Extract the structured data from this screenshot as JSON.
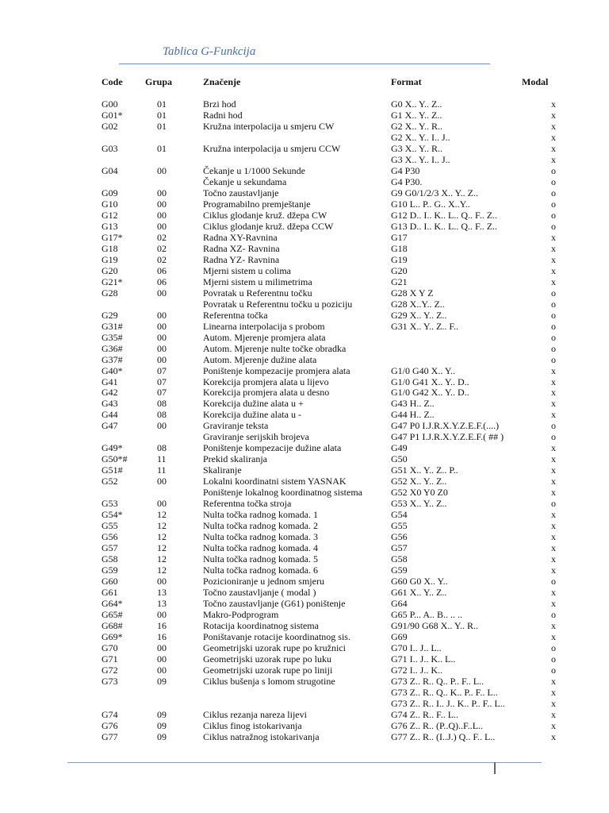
{
  "title": "Tablica G-Funkcija",
  "headers": {
    "code": "Code",
    "grupa": "Grupa",
    "znacenje": "Značenje",
    "format": "Format",
    "modal": "Modal"
  },
  "rows": [
    [
      "G00",
      "01",
      "Brzi hod",
      "G0 X.. Y.. Z..",
      "x"
    ],
    [
      "G01*",
      "01",
      "Radni hod",
      "G1 X.. Y.. Z..",
      "x"
    ],
    [
      "G02",
      "01",
      "Kružna interpolacija u smjeru CW",
      "G2 X.. Y.. R..",
      "x"
    ],
    [
      "",
      "",
      "",
      "G2 X.. Y.. I.. J..",
      "x"
    ],
    [
      "G03",
      "01",
      "Kružna interpolacija u smjeru CCW",
      "G3 X.. Y.. R..",
      "x"
    ],
    [
      "",
      "",
      "",
      "G3 X.. Y.. I.. J..",
      "x"
    ],
    [
      "G04",
      "00",
      "Čekanje u    1/1000 Sekunde",
      "G4 P30",
      "o"
    ],
    [
      "",
      "",
      "Čekanje u sekundama",
      "G4 P30.",
      "o"
    ],
    [
      "G09",
      "00",
      "Točno zaustavljanje",
      "G9 G0/1/2/3  X.. Y.. Z..",
      "o"
    ],
    [
      "G10",
      "00",
      "Programabilno premještanje",
      "G10 L.. P.. G.. X..Y..",
      "o"
    ],
    [
      "G12",
      "00",
      "Ciklus glodanje kruž. džepa CW",
      "G12 D.. I.. K.. L.. Q.. F.. Z..",
      "o"
    ],
    [
      "G13",
      "00",
      "Ciklus glodanje kruž. džepa CCW",
      "G13 D.. I.. K.. L.. Q.. F.. Z..",
      "o"
    ],
    [
      "G17*",
      "02",
      "Radna XY-Ravnina",
      "G17",
      "x"
    ],
    [
      "G18",
      "02",
      "Radna XZ- Ravnina",
      "G18",
      "x"
    ],
    [
      "G19",
      "02",
      "Radna YZ- Ravnina",
      "G19",
      "x"
    ],
    [
      "G20",
      "06",
      "Mjerni sistem u colima",
      "G20",
      "x"
    ],
    [
      "G21*",
      "06",
      "Mjerni sistem u milimetrima",
      "G21",
      "x"
    ],
    [
      "G28",
      "00",
      "Povratak u Referentnu točku",
      "G28 X Y Z",
      "o"
    ],
    [
      "",
      "",
      "Povratak u Referentnu točku u poziciju",
      "G28 X..Y.. Z..",
      "o"
    ],
    [
      "G29",
      "00",
      "Referentna točka",
      "G29 X.. Y.. Z..",
      "o"
    ],
    [
      "G31#",
      "00",
      "Linearna interpolacija s probom",
      "G31 X.. Y.. Z.. F..",
      "o"
    ],
    [
      "G35#",
      "00",
      "Autom. Mjerenje promjera alata",
      "",
      "o"
    ],
    [
      "G36#",
      "00",
      "Autom. Mjerenje nulte točke     obradka",
      "",
      "o"
    ],
    [
      "G37#",
      "00",
      "Autom. Mjerenje dužine alata",
      "",
      "o"
    ],
    [
      "G40*",
      "07",
      "Poništenje kompezacije promjera alata",
      "G1/0 G40 X.. Y..",
      "x"
    ],
    [
      "G41",
      "07",
      "Korekcija promjera alata u lijevo",
      "G1/0 G41 X.. Y.. D..",
      "x"
    ],
    [
      "G42",
      "07",
      "Korekcija promjera alata u desno",
      "G1/0 G42 X.. Y.. D..",
      "x"
    ],
    [
      "G43",
      "08",
      "Korekcija dužine alata u +",
      "G43 H.. Z..",
      "x"
    ],
    [
      "G44",
      "08",
      "Korekcija dužine alata u  -",
      "G44 H.. Z..",
      "x"
    ],
    [
      "G47",
      "00",
      "Graviranje teksta",
      "G47 P0 I.J.R.X.Y.Z.E.F.(....)",
      "o"
    ],
    [
      "",
      "",
      "Graviranje serijskih brojeva",
      "G47 P1 I.J.R.X.Y.Z.E.F.( ## )",
      "o"
    ],
    [
      "G49*",
      "08",
      "Poništenje kompezacije dužine alata",
      "G49",
      "x"
    ],
    [
      "G50*#",
      "11",
      "Prekid skaliranja",
      "G50",
      "x"
    ],
    [
      "G51#",
      "11",
      "Skaliranje",
      "G51 X.. Y.. Z.. P..",
      "x"
    ],
    [
      "G52",
      "00",
      "Lokalni koordinatni sistem YASNAK",
      "G52 X.. Y.. Z..",
      "x"
    ],
    [
      "",
      "",
      "Poništenje lokalnog koordinatnog sistema",
      "G52 X0 Y0 Z0",
      "x"
    ],
    [
      "G53",
      "00",
      "Referentna točka stroja",
      "G53 X.. Y.. Z..",
      "o"
    ],
    [
      "G54*",
      "12",
      "Nulta točka radnog komada. 1",
      "G54",
      "x"
    ],
    [
      "G55",
      "12",
      "Nulta točka radnog komada. 2",
      "G55",
      "x"
    ],
    [
      "G56",
      "12",
      "Nulta točka radnog komada. 3",
      "G56",
      "x"
    ],
    [
      "G57",
      "12",
      "Nulta točka radnog komada. 4",
      "G57",
      "x"
    ],
    [
      "G58",
      "12",
      "Nulta točka radnog komada. 5",
      "G58",
      "x"
    ],
    [
      "G59",
      "12",
      "Nulta točka radnog komada. 6",
      "G59",
      "x"
    ],
    [
      "G60",
      "00",
      "Pozicioniranje u jednom smjeru",
      "G60 G0 X.. Y..",
      "o"
    ],
    [
      "G61",
      "13",
      "Točno zaustavljanje ( modal )",
      "G61 X.. Y.. Z..",
      "x"
    ],
    [
      "G64*",
      "13",
      "Točno zaustavljanje (G61) poništenje",
      "G64",
      "x"
    ],
    [
      "G65#",
      "00",
      "Makro-Podprogram",
      "G65 P... A.. B.. .. ..",
      "o"
    ],
    [
      "G68#",
      "16",
      "Rotacija koordinatnog sistema",
      "G91/90 G68 X.. Y.. R..",
      "x"
    ],
    [
      "G69*",
      "16",
      "Poništavanje rotacije koordinatnog sis.",
      "G69",
      "x"
    ],
    [
      "G70",
      "00",
      "Geometrijski uzorak rupe po kružnici",
      "G70 I.. J.. L..",
      "o"
    ],
    [
      "G71",
      "00",
      "Geometrijski uzorak rupe po luku",
      "G71 I.. J.. K.. L..",
      "o"
    ],
    [
      "G72",
      "00",
      "Geometrijski uzorak rupe po liniji",
      "G72 I.. J.. K..",
      "o"
    ],
    [
      "G73",
      "09",
      "Ciklus bušenja s lomom strugotine",
      "G73 Z.. R.. Q.. P.. F.. L..",
      "x"
    ],
    [
      "",
      "",
      "",
      "G73 Z.. R.. Q.. K.. P.. F.. L..",
      "x"
    ],
    [
      "",
      "",
      "",
      "G73 Z.. R.. I.. J.. K.. P.. F.. L..",
      "x"
    ],
    [
      "G74",
      "09",
      "Ciklus rezanja nareza lijevi",
      "G74 Z.. R.. F.. L..",
      "x"
    ],
    [
      "G76",
      "09",
      "Ciklus finog istokarivanja",
      "G76 Z.. R.. (P..Q)..F..L..",
      "x"
    ],
    [
      "G77",
      "09",
      "Ciklus natražnog istokarivanja",
      "G77 Z.. R.. (I..J.) Q.. F.. L..",
      "x"
    ]
  ]
}
